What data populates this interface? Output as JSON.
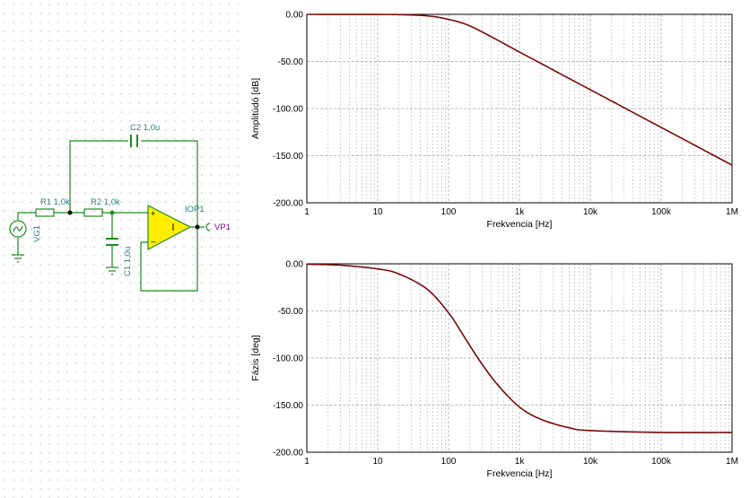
{
  "schematic": {
    "components": {
      "c2": "C2 1,0u",
      "r1": "R1 1,0k",
      "r2": "R2 1,0k",
      "c1": "C1 1,0u",
      "vg1": "VG1",
      "iop1": "IOP1",
      "vp1": "VP1"
    }
  },
  "colors": {
    "wire": "#1e8a1e",
    "trace": "#7a0a0a",
    "opamp_fill": "#ffee00",
    "label": "#2a7f7f",
    "probe": "#8a008a"
  },
  "chart_data": [
    {
      "type": "line",
      "xscale": "log",
      "xlim": [
        1,
        1000000
      ],
      "ylim": [
        -200,
        0
      ],
      "xlabel": "Frekvencia [Hz]",
      "ylabel": "Amplitúdó [dB]",
      "x_ticks": [
        "1",
        "10",
        "100",
        "1k",
        "10k",
        "100k",
        "1M"
      ],
      "y_ticks": [
        "0.00",
        "-50.00",
        "-100.00",
        "-150.00",
        "-200.00"
      ],
      "grid": true,
      "series": [
        {
          "x": [
            1,
            10,
            20,
            50,
            100,
            200,
            500,
            1000,
            2000,
            5000,
            10000,
            20000,
            50000,
            100000,
            200000,
            500000,
            1000000
          ],
          "values": [
            0,
            -0.1,
            -0.3,
            -1.6,
            -5.3,
            -12.3,
            -27.7,
            -40.0,
            -52.0,
            -68.0,
            -80.0,
            -92.0,
            -108.0,
            -120.0,
            -132.0,
            -148.0,
            -160.0
          ]
        }
      ]
    },
    {
      "type": "line",
      "xscale": "log",
      "xlim": [
        1,
        1000000
      ],
      "ylim": [
        -200,
        0
      ],
      "xlabel": "Frekvencia [Hz]",
      "ylabel": "Fázis [deg]",
      "x_ticks": [
        "1",
        "10",
        "100",
        "1k",
        "10k",
        "100k",
        "1M"
      ],
      "y_ticks": [
        "0.00",
        "-50.00",
        "-100.00",
        "-150.00",
        "-200.00"
      ],
      "grid": true,
      "series": [
        {
          "x": [
            1,
            3,
            10,
            20,
            50,
            100,
            150,
            200,
            300,
            500,
            1000,
            2000,
            5000,
            10000,
            100000,
            1000000
          ],
          "values": [
            -0.5,
            -1.5,
            -5.4,
            -10.8,
            -27,
            -52,
            -72,
            -87,
            -107,
            -129,
            -152,
            -165,
            -174,
            -177,
            -179,
            -179
          ]
        }
      ]
    }
  ]
}
